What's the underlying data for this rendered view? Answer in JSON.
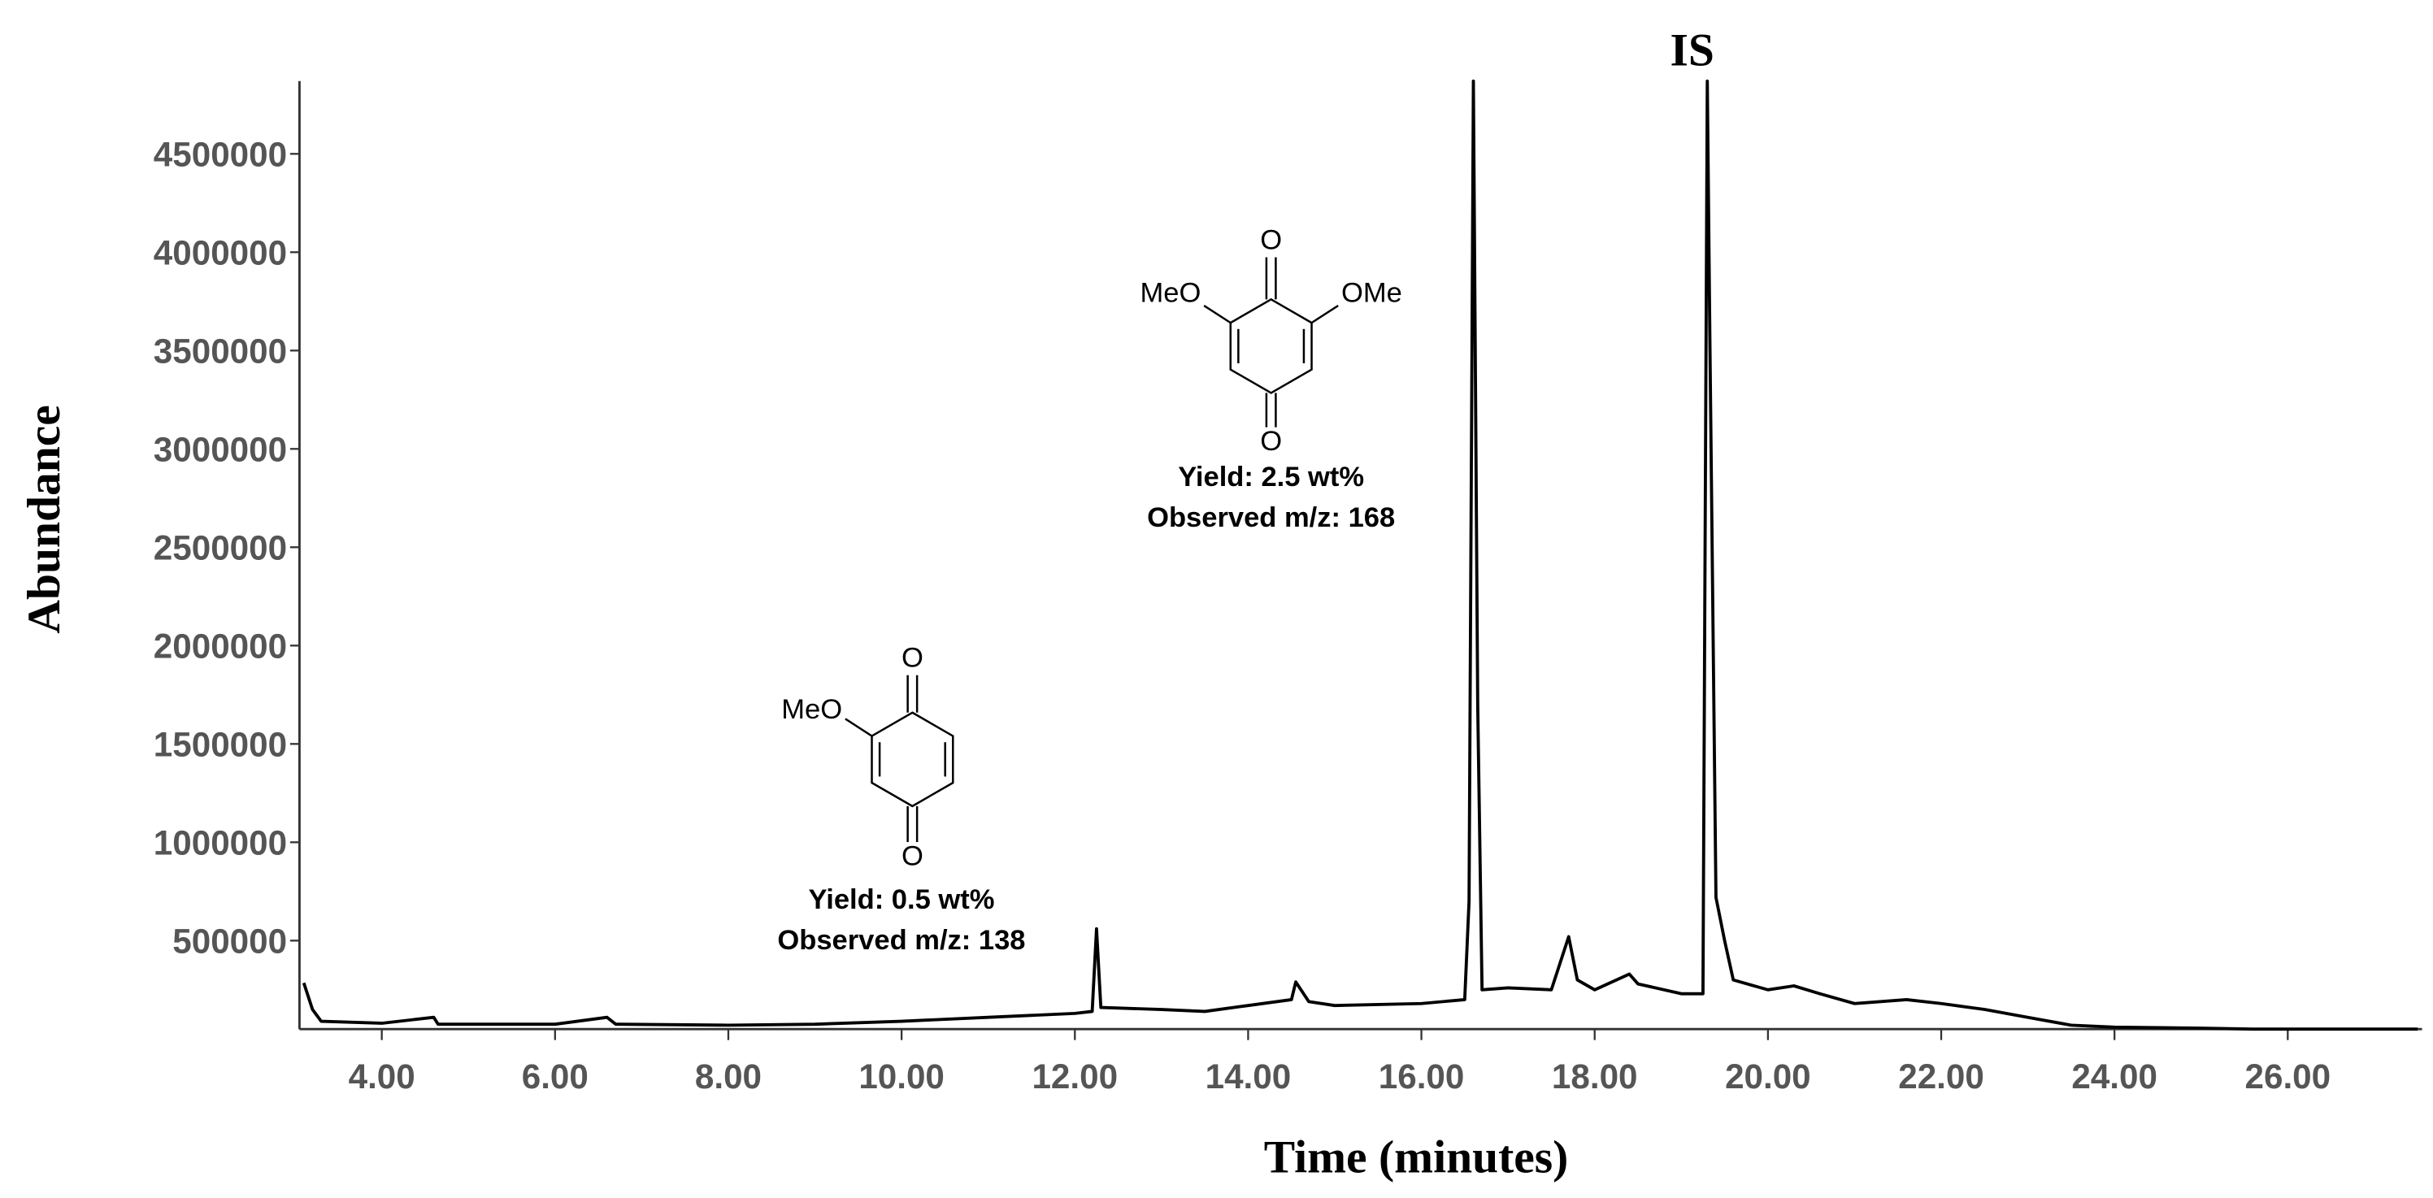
{
  "chart_data": {
    "type": "line",
    "x_label": "Time (minutes)",
    "y_label": "Abundance",
    "annotations": {
      "peak_label": "IS",
      "compound_a": {
        "oxygen_top": "O",
        "substituent_left": "MeO",
        "substituent_right": "OMe",
        "oxygen_bottom": "O",
        "yield": "Yield: 2.5 wt%",
        "mz": "Observed m/z: 168"
      },
      "compound_b": {
        "oxygen_top": "O",
        "substituent_left": "MeO",
        "oxygen_bottom": "O",
        "yield": "Yield: 0.5 wt%",
        "mz": "Observed m/z: 138"
      }
    },
    "x": [
      3.1,
      3.2,
      3.3,
      4.0,
      4.6,
      4.65,
      6.0,
      6.6,
      6.7,
      8.0,
      9.0,
      10.0,
      11.0,
      12.0,
      12.2,
      12.25,
      12.3,
      13.0,
      13.5,
      14.0,
      14.5,
      14.55,
      14.7,
      15.0,
      16.0,
      16.5,
      16.55,
      16.6,
      16.65,
      16.7,
      17.0,
      17.5,
      17.7,
      17.8,
      18.0,
      18.4,
      18.5,
      19.0,
      19.25,
      19.3,
      19.33,
      19.4,
      19.5,
      19.6,
      20.0,
      20.3,
      20.6,
      21.0,
      21.6,
      22.0,
      22.5,
      23.0,
      23.5,
      24.0,
      25.0,
      25.6,
      27.5
    ],
    "series": [
      {
        "color": "#000000",
        "values": [
          285000,
          150000,
          90000,
          80000,
          110000,
          75000,
          75000,
          110000,
          75000,
          70000,
          75000,
          90000,
          110000,
          130000,
          140000,
          560000,
          160000,
          150000,
          140000,
          170000,
          200000,
          290000,
          190000,
          170000,
          180000,
          200000,
          700000,
          4870000,
          1700000,
          250000,
          260000,
          250000,
          520000,
          300000,
          250000,
          330000,
          280000,
          230000,
          230000,
          4870000,
          3550000,
          720000,
          500000,
          300000,
          250000,
          270000,
          230000,
          180000,
          200000,
          180000,
          150000,
          110000,
          70000,
          60000,
          55000,
          50000,
          50000
        ]
      }
    ],
    "xlim": [
      3.05,
      27.55
    ],
    "ylim": [
      50000,
      4870000
    ],
    "xticks": [
      {
        "value": 4,
        "label": "4.00"
      },
      {
        "value": 6,
        "label": "6.00"
      },
      {
        "value": 8,
        "label": "8.00"
      },
      {
        "value": 10,
        "label": "10.00"
      },
      {
        "value": 12,
        "label": "12.00"
      },
      {
        "value": 14,
        "label": "14.00"
      },
      {
        "value": 16,
        "label": "16.00"
      },
      {
        "value": 18,
        "label": "18.00"
      },
      {
        "value": 20,
        "label": "20.00"
      },
      {
        "value": 22,
        "label": "22.00"
      },
      {
        "value": 24,
        "label": "24.00"
      },
      {
        "value": 26,
        "label": "26.00"
      }
    ],
    "yticks": [
      500000,
      1000000,
      1500000,
      2000000,
      2500000,
      3000000,
      3500000,
      4000000,
      4500000
    ],
    "grid": false
  }
}
